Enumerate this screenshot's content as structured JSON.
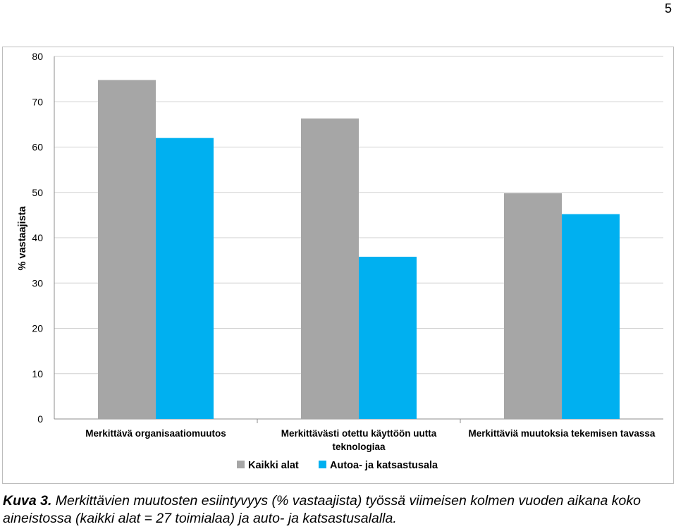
{
  "page_number": "5",
  "caption": {
    "label": "Kuva 3.",
    "text": " Merkittävien muutosten esiintyvyys (% vastaajista) työssä viimeisen kolmen vuoden aikana koko aineistossa (kaikki alat = 27 toimialaa) ja auto- ja katsastusalalla."
  },
  "chart_data": {
    "type": "bar",
    "title": "",
    "xlabel": "",
    "ylabel": "% vastaajista",
    "ylim": [
      0,
      80
    ],
    "yticks": [
      0,
      10,
      20,
      30,
      40,
      50,
      60,
      70,
      80
    ],
    "grid": true,
    "legend_position": "bottom",
    "categories": [
      [
        "Merkittävä organisaatiomuutos"
      ],
      [
        "Merkittävästi otettu käyttöön uutta",
        "teknologiaa"
      ],
      [
        "Merkittäviä muutoksia tekemisen tavassa"
      ]
    ],
    "series": [
      {
        "name": "Kaikki alat",
        "color": "#a6a6a6",
        "values": [
          74.8,
          66.3,
          49.8
        ]
      },
      {
        "name": "Autoa- ja katsastusala",
        "color": "#00b0f0",
        "values": [
          62.0,
          35.8,
          45.2
        ]
      }
    ]
  }
}
